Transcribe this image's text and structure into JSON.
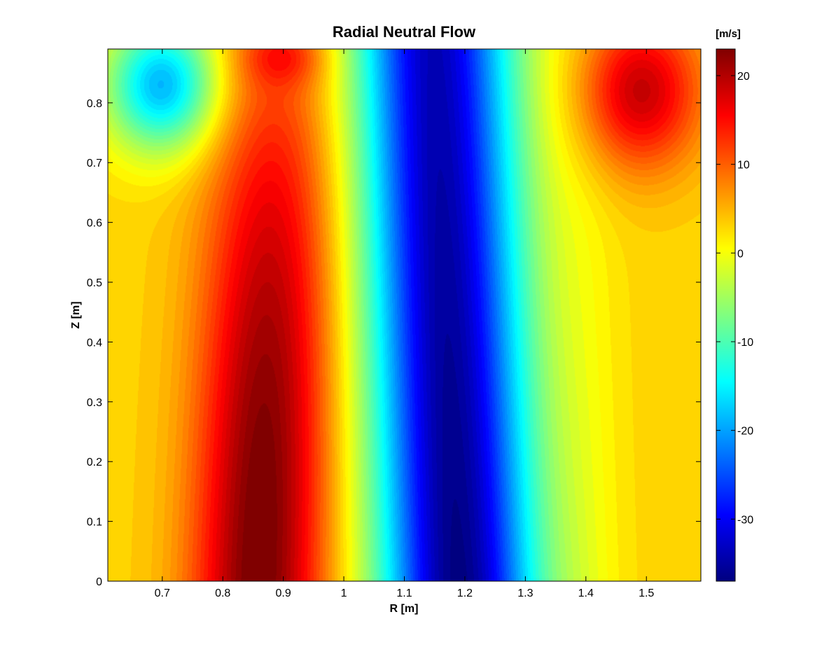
{
  "chart_data": {
    "type": "heatmap",
    "subtype": "filled-contour",
    "title": "Radial Neutral Flow",
    "xlabel": "R [m]",
    "ylabel": "Z [m]",
    "xlim": [
      0.61,
      1.59
    ],
    "ylim": [
      0,
      0.89
    ],
    "xticks": [
      0.7,
      0.8,
      0.9,
      1,
      1.1,
      1.2,
      1.3,
      1.4,
      1.5
    ],
    "yticks": [
      0,
      0.1,
      0.2,
      0.3,
      0.4,
      0.5,
      0.6,
      0.7,
      0.8
    ],
    "colormap": "jet",
    "grid": false,
    "colorbar": {
      "unit": "[m/s]",
      "range": [
        -37,
        23
      ],
      "ticks": [
        20,
        10,
        0,
        -10,
        -20,
        -30
      ]
    },
    "features": [
      {
        "kind": "max",
        "r": 0.86,
        "z_range": [
          0.0,
          0.35
        ],
        "value": 23
      },
      {
        "kind": "min",
        "r": 1.15,
        "z_range": [
          0.3,
          0.85
        ],
        "value": -36
      },
      {
        "kind": "local-max",
        "r": 1.49,
        "z": 0.82,
        "value": 10
      },
      {
        "kind": "local-min",
        "r": 0.7,
        "z": 0.83,
        "value": -17
      },
      {
        "kind": "zero-crossing",
        "r": 0.98
      }
    ]
  }
}
